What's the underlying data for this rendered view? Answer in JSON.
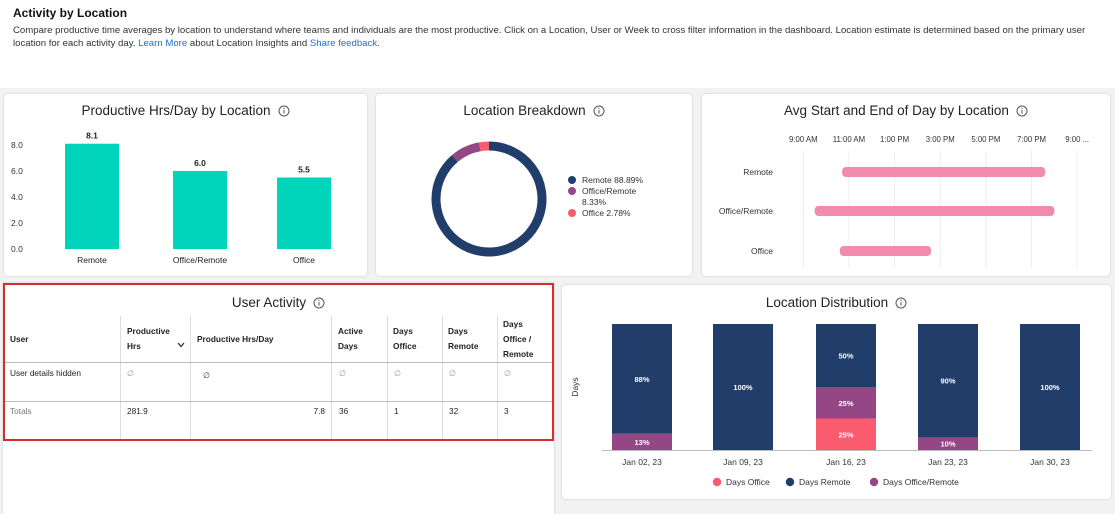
{
  "header": {
    "title": "Activity by Location",
    "description_text": "Compare productive time averages by location to understand where teams and individuals are the most productive. Click on a Location, User or Week to cross filter information in the dashboard. Location estimate is determined based on the primary user location for each activity day. ",
    "learn_more_link": "Learn More",
    "middle_text": " about Location Insights and ",
    "feedback_link": "Share feedback."
  },
  "cards": {
    "productive": {
      "title": "Productive Hrs/Day by Location"
    },
    "breakdown": {
      "title": "Location Breakdown"
    },
    "avg_day": {
      "title": "Avg Start and End of Day by Location"
    },
    "user_activity": {
      "title": "User Activity"
    },
    "distribution": {
      "title": "Location Distribution"
    }
  },
  "colors": {
    "teal": "#00d4ba",
    "navy": "#213d69",
    "purple": "#954684",
    "coral": "#fb5b6f",
    "pink": "#f08aae",
    "highlight_frame": "#d92b2b"
  },
  "chart_data": [
    {
      "id": "productive",
      "type": "bar",
      "categories": [
        "Remote",
        "Office/Remote",
        "Office"
      ],
      "values": [
        8.1,
        6.0,
        5.5
      ],
      "value_labels": [
        "8.1",
        "6.0",
        "5.5"
      ],
      "yticks": [
        "8.0",
        "6.0",
        "4.0",
        "2.0",
        "0.0"
      ],
      "ylim": [
        0,
        8.0
      ],
      "grid": false
    },
    {
      "id": "breakdown",
      "type": "pie",
      "labels": [
        "Remote",
        "Office/Remote",
        "Office"
      ],
      "values": [
        88.89,
        8.33,
        2.78
      ],
      "legend": [
        "Remote 88.89%",
        "Office/Remote",
        "8.33%",
        "Office 2.78%"
      ],
      "legend_position": "right"
    },
    {
      "id": "avg_day",
      "type": "bar",
      "orientation": "horizontal",
      "categories": [
        "Remote",
        "Office/Remote",
        "Office"
      ],
      "start_hours": [
        10.7,
        9.5,
        10.6
      ],
      "end_hours": [
        19.6,
        20.0,
        14.6
      ],
      "xticks": [
        "9:00 AM",
        "11:00 AM",
        "1:00 PM",
        "3:00 PM",
        "5:00 PM",
        "7:00 PM",
        "9:00 ..."
      ],
      "xlim": [
        8.2,
        22.0
      ],
      "grid": true
    },
    {
      "id": "distribution",
      "type": "bar",
      "stacked": true,
      "percent": true,
      "ylabel": "Days",
      "categories": [
        "Jan 02, 23",
        "Jan 09, 23",
        "Jan 16, 23",
        "Jan 23, 23",
        "Jan 30, 23"
      ],
      "series": [
        {
          "name": "Days Office",
          "values": [
            0,
            0,
            25,
            0,
            0
          ]
        },
        {
          "name": "Days Office/Remote",
          "values": [
            13,
            0,
            25,
            10,
            0
          ]
        },
        {
          "name": "Days Remote",
          "values": [
            88,
            100,
            50,
            90,
            100
          ]
        }
      ],
      "value_labels": {
        "Days Office": [
          "",
          "",
          "25%",
          "",
          ""
        ],
        "Days Office/Remote": [
          "13%",
          "",
          "25%",
          "10%",
          ""
        ],
        "Days Remote": [
          "88%",
          "100%",
          "50%",
          "90%",
          "100%"
        ]
      },
      "legend": [
        "Days Office",
        "Days Remote",
        "Days Office/Remote"
      ],
      "legend_position": "bottom"
    }
  ],
  "user_table": {
    "headers": {
      "user": "User",
      "productive_hrs_1": "Productive",
      "productive_hrs_2": "Hrs",
      "prod_per_day": "Productive Hrs/Day",
      "active_1": "Active",
      "active_2": "Days",
      "office_1": "Days",
      "office_2": "Office",
      "remote_1": "Days",
      "remote_2": "Remote",
      "offrem_1": "Days",
      "offrem_2": "Office /",
      "offrem_3": "Remote"
    },
    "row": {
      "user": "User details hidden",
      "productive_hrs": "∅",
      "prod_per_day": "∅",
      "active": "∅",
      "office": "∅",
      "remote": "∅",
      "offrem": "∅"
    },
    "totals": {
      "label": "Totals",
      "productive_hrs": "281.9",
      "prod_per_day": "7.8",
      "active": "36",
      "office": "1",
      "remote": "32",
      "offrem": "3"
    }
  }
}
